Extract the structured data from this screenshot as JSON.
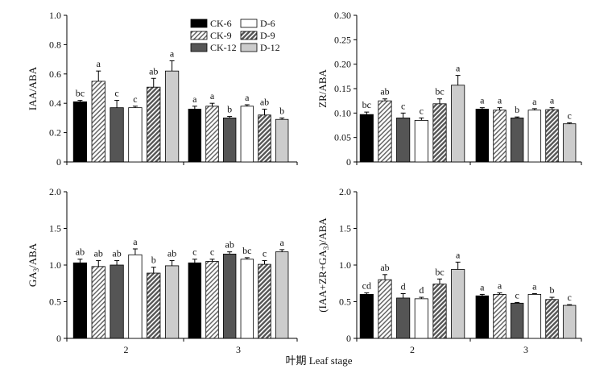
{
  "figure": {
    "xlabel": "叶期 Leaf stage",
    "legend": [
      "CK-6",
      "D-6",
      "CK-9",
      "D-9",
      "CK-12",
      "D-12"
    ]
  },
  "chart_data": [
    {
      "type": "bar",
      "panel": "top-left",
      "ylabel": "IAA/ABA",
      "ylim": [
        0,
        1.0
      ],
      "yticks": [
        "0",
        "0.2",
        "0.4",
        "0.6",
        "0.8",
        "1.0"
      ],
      "categories": [
        "2",
        "3"
      ],
      "series": [
        {
          "name": "CK-6",
          "values": [
            0.41,
            0.36
          ],
          "errors": [
            0.01,
            0.02
          ],
          "letters": [
            "bc",
            "a"
          ]
        },
        {
          "name": "CK-9",
          "values": [
            0.55,
            0.38
          ],
          "errors": [
            0.07,
            0.02
          ],
          "letters": [
            "a",
            "a"
          ]
        },
        {
          "name": "CK-12",
          "values": [
            0.37,
            0.3
          ],
          "errors": [
            0.05,
            0.01
          ],
          "letters": [
            "c",
            "b"
          ]
        },
        {
          "name": "D-6",
          "values": [
            0.37,
            0.38
          ],
          "errors": [
            0.01,
            0.01
          ],
          "letters": [
            "c",
            "a"
          ]
        },
        {
          "name": "D-9",
          "values": [
            0.51,
            0.32
          ],
          "errors": [
            0.06,
            0.04
          ],
          "letters": [
            "ab",
            "ab"
          ]
        },
        {
          "name": "D-12",
          "values": [
            0.62,
            0.29
          ],
          "errors": [
            0.07,
            0.01
          ],
          "letters": [
            "a",
            "b"
          ]
        }
      ]
    },
    {
      "type": "bar",
      "panel": "top-right",
      "ylabel": "ZR/ABA",
      "ylim": [
        0,
        0.3
      ],
      "yticks": [
        "0",
        "0.05",
        "0.10",
        "0.15",
        "0.20",
        "0.25",
        "0.30"
      ],
      "categories": [
        "2",
        "3"
      ],
      "series": [
        {
          "name": "CK-6",
          "values": [
            0.097,
            0.108
          ],
          "errors": [
            0.005,
            0.003
          ],
          "letters": [
            "bc",
            "a"
          ]
        },
        {
          "name": "CK-9",
          "values": [
            0.125,
            0.106
          ],
          "errors": [
            0.004,
            0.005
          ],
          "letters": [
            "ab",
            "a"
          ]
        },
        {
          "name": "CK-12",
          "values": [
            0.09,
            0.09
          ],
          "errors": [
            0.01,
            0.002
          ],
          "letters": [
            "c",
            "b"
          ]
        },
        {
          "name": "D-6",
          "values": [
            0.085,
            0.106
          ],
          "errors": [
            0.005,
            0.003
          ],
          "letters": [
            "c",
            "a"
          ]
        },
        {
          "name": "D-9",
          "values": [
            0.119,
            0.107
          ],
          "errors": [
            0.01,
            0.004
          ],
          "letters": [
            "bc",
            "a"
          ]
        },
        {
          "name": "D-12",
          "values": [
            0.157,
            0.078
          ],
          "errors": [
            0.02,
            0.002
          ],
          "letters": [
            "a",
            "c"
          ]
        }
      ]
    },
    {
      "type": "bar",
      "panel": "bottom-left",
      "ylabel": "GA3/ABA",
      "ylim": [
        0,
        2.0
      ],
      "yticks": [
        "0",
        "0.5",
        "1.0",
        "1.5",
        "2.0"
      ],
      "categories": [
        "2",
        "3"
      ],
      "series": [
        {
          "name": "CK-6",
          "values": [
            1.03,
            1.03
          ],
          "errors": [
            0.05,
            0.05
          ],
          "letters": [
            "ab",
            "c"
          ]
        },
        {
          "name": "CK-9",
          "values": [
            0.98,
            1.05
          ],
          "errors": [
            0.08,
            0.03
          ],
          "letters": [
            "ab",
            "c"
          ]
        },
        {
          "name": "CK-12",
          "values": [
            1.0,
            1.15
          ],
          "errors": [
            0.06,
            0.03
          ],
          "letters": [
            "ab",
            "ab"
          ]
        },
        {
          "name": "D-6",
          "values": [
            1.14,
            1.08
          ],
          "errors": [
            0.08,
            0.02
          ],
          "letters": [
            "a",
            "bc"
          ]
        },
        {
          "name": "D-9",
          "values": [
            0.89,
            1.01
          ],
          "errors": [
            0.08,
            0.05
          ],
          "letters": [
            "b",
            "c"
          ]
        },
        {
          "name": "D-12",
          "values": [
            0.99,
            1.18
          ],
          "errors": [
            0.07,
            0.03
          ],
          "letters": [
            "ab",
            "a"
          ]
        }
      ]
    },
    {
      "type": "bar",
      "panel": "bottom-right",
      "ylabel": "(IAA+ZR+GA3)/ABA",
      "ylim": [
        0,
        2.0
      ],
      "yticks": [
        "0",
        "0.5",
        "1.0",
        "1.5",
        "2.0"
      ],
      "categories": [
        "2",
        "3"
      ],
      "series": [
        {
          "name": "CK-6",
          "values": [
            0.6,
            0.58
          ],
          "errors": [
            0.02,
            0.02
          ],
          "letters": [
            "cd",
            "a"
          ]
        },
        {
          "name": "CK-9",
          "values": [
            0.8,
            0.6
          ],
          "errors": [
            0.07,
            0.02
          ],
          "letters": [
            "ab",
            "a"
          ]
        },
        {
          "name": "CK-12",
          "values": [
            0.55,
            0.48
          ],
          "errors": [
            0.06,
            0.01
          ],
          "letters": [
            "d",
            "c"
          ]
        },
        {
          "name": "D-6",
          "values": [
            0.54,
            0.6
          ],
          "errors": [
            0.02,
            0.01
          ],
          "letters": [
            "d",
            "a"
          ]
        },
        {
          "name": "D-9",
          "values": [
            0.74,
            0.53
          ],
          "errors": [
            0.07,
            0.03
          ],
          "letters": [
            "bc",
            "b"
          ]
        },
        {
          "name": "D-12",
          "values": [
            0.94,
            0.45
          ],
          "errors": [
            0.1,
            0.01
          ],
          "letters": [
            "a",
            "c"
          ]
        }
      ]
    }
  ]
}
